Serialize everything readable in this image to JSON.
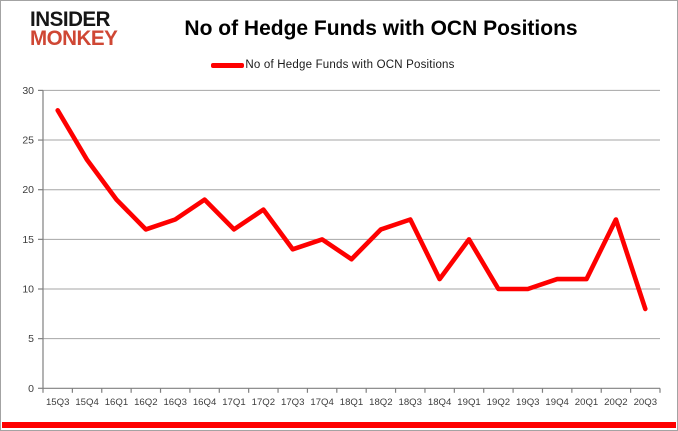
{
  "logo": {
    "line1": "INSIDER",
    "line2": "MONKEY"
  },
  "header": {
    "title": "No of Hedge Funds with OCN Positions"
  },
  "legend": {
    "label": "No of Hedge Funds with OCN Positions",
    "marker_color": "#fe0000"
  },
  "chart_data": {
    "type": "line",
    "title": "No of Hedge Funds with OCN Positions",
    "series": [
      {
        "name": "No of Hedge Funds with OCN Positions",
        "values": [
          28,
          23,
          19,
          16,
          17,
          19,
          16,
          18,
          14,
          15,
          13,
          16,
          17,
          11,
          15,
          10,
          10,
          11,
          11,
          17,
          8
        ]
      }
    ],
    "categories": [
      "15Q3",
      "15Q4",
      "16Q1",
      "16Q2",
      "16Q3",
      "16Q4",
      "17Q1",
      "17Q2",
      "17Q3",
      "17Q4",
      "18Q1",
      "18Q2",
      "18Q3",
      "18Q4",
      "19Q1",
      "19Q2",
      "19Q3",
      "19Q4",
      "20Q1",
      "20Q2",
      "20Q3"
    ],
    "xlabel": "",
    "ylabel": "",
    "ylim": [
      0,
      30
    ],
    "yticks": [
      0,
      5,
      10,
      15,
      20,
      25,
      30
    ],
    "grid": true,
    "legend_position": "top",
    "line_color": "#fe0000",
    "grid_color": "#a6a6a6",
    "axis_color": "#808080"
  },
  "colors": {
    "accent_red": "#fe0000",
    "logo_red": "#cf4734",
    "logo_black": "#161616",
    "frame_border": "#a3a3a3"
  }
}
